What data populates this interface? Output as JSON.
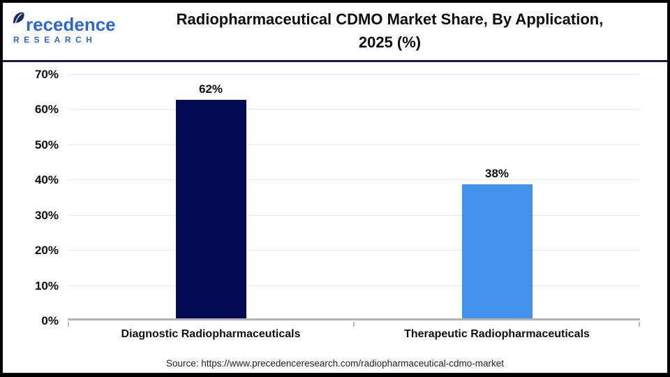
{
  "header": {
    "logo": {
      "brand_name": "Precedence",
      "brand_name_rest": "recedence",
      "brand_sub": "RESEARCH",
      "leaf_color": "#1b2a66",
      "text_color": "#2e66cc"
    },
    "title_line1": "Radiopharmaceutical CDMO Market Share, By Application,",
    "title_line2": "2025 (%)"
  },
  "chart_data": {
    "type": "bar",
    "title": "Radiopharmaceutical CDMO Market Share, By Application, 2025 (%)",
    "categories": [
      "Diagnostic Radiopharmaceuticals",
      "Therapeutic Radiopharmaceuticals"
    ],
    "values": [
      62,
      38
    ],
    "value_labels": [
      "62%",
      "38%"
    ],
    "bar_colors": [
      "#020b54",
      "#4592ec"
    ],
    "xlabel": "",
    "ylabel": "",
    "ylim": [
      0,
      70
    ],
    "ytick_step": 10,
    "ytick_labels": [
      "0%",
      "10%",
      "20%",
      "30%",
      "40%",
      "50%",
      "60%",
      "70%"
    ],
    "grid": "horizontal",
    "legend": "none"
  },
  "footer": {
    "source": "Source: https://www.precedenceresearch.com/radiopharmaceutical-cdmo-market"
  },
  "colors": {
    "divider": "#181843",
    "grid": "#e7e7e7",
    "axis": "#b3b3b3",
    "text": "#0c0c0c"
  }
}
